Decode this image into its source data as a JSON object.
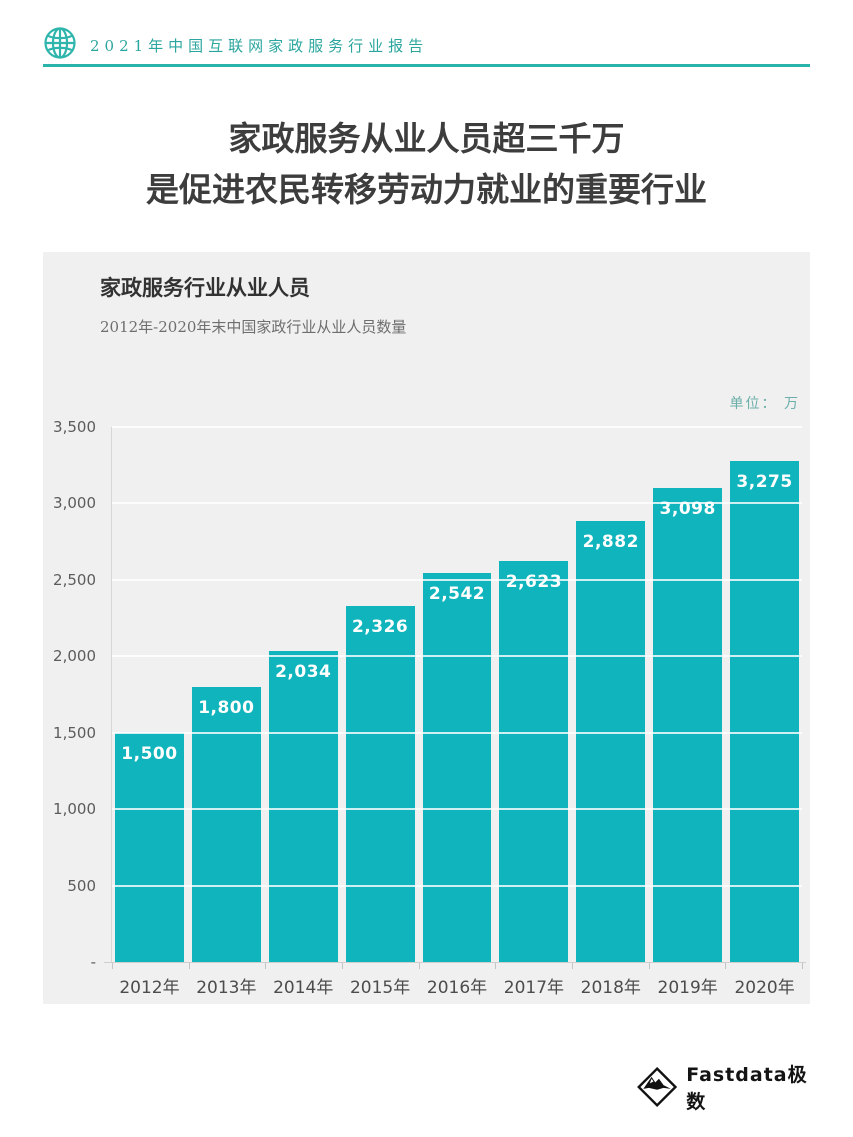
{
  "header": {
    "report_title": "2021年中国互联网家政服务行业报告"
  },
  "hero": {
    "title_line1": "家政服务从业人员超三千万",
    "title_line2": "是促进农民转移劳动力就业的重要行业"
  },
  "panel": {
    "title": "家政服务行业从业人员",
    "subtitle": "2012年-2020年末中国家政行业从业人员数量",
    "unit_label": "单位： 万"
  },
  "chart_data": {
    "type": "bar",
    "title": "家政服务行业从业人员",
    "subtitle": "2012年-2020年末中国家政行业从业人员数量",
    "unit": "万",
    "categories": [
      "2012年",
      "2013年",
      "2014年",
      "2015年",
      "2016年",
      "2017年",
      "2018年",
      "2019年",
      "2020年"
    ],
    "values": [
      1500,
      1800,
      2034,
      2326,
      2542,
      2623,
      2882,
      3098,
      3275
    ],
    "value_labels": [
      "1,500",
      "1,800",
      "2,034",
      "2,326",
      "2,542",
      "2,623",
      "2,882",
      "3,098",
      "3,275"
    ],
    "ylim": [
      0,
      3500
    ],
    "y_ticks": [
      {
        "v": 3500,
        "label": "3,500"
      },
      {
        "v": 3000,
        "label": "3,000"
      },
      {
        "v": 2500,
        "label": "2,500"
      },
      {
        "v": 2000,
        "label": "2,000"
      },
      {
        "v": 1500,
        "label": "1,500"
      },
      {
        "v": 1000,
        "label": "1,000"
      },
      {
        "v": 500,
        "label": "500"
      },
      {
        "v": 0,
        "label": "-"
      }
    ],
    "grid": true,
    "legend": false,
    "xlabel": "",
    "ylabel": ""
  },
  "footer": {
    "brand": "Fastdata极数"
  },
  "colors": {
    "accent_teal": "#29b3aa",
    "header_text_teal": "#2ba69e",
    "bar_teal": "#0fb4bc",
    "panel_bg": "#f0f0f0",
    "title_dark": "#3d3d3d",
    "unit_teal_gray": "#6aafa9"
  }
}
